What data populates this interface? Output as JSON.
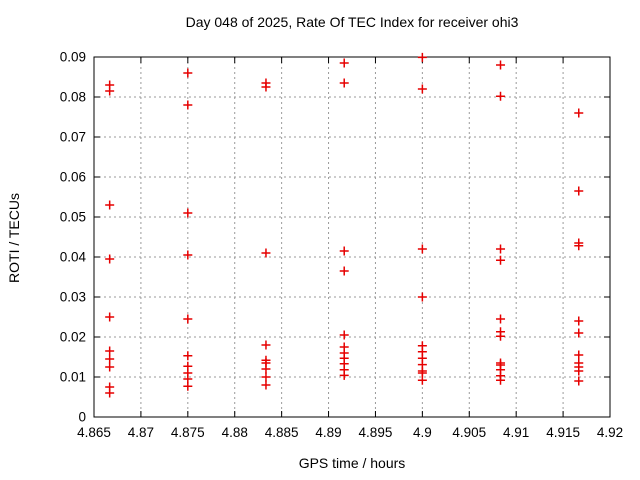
{
  "chart_data": {
    "type": "scatter",
    "title": "Day 048 of 2025, Rate Of TEC Index for receiver ohi3",
    "xlabel": "GPS time / hours",
    "ylabel": "ROTI / TECUs",
    "xlim": [
      4.865,
      4.92
    ],
    "ylim": [
      0,
      0.09
    ],
    "x_tick_labels": [
      "4.865",
      "4.87",
      "4.875",
      "4.88",
      "4.885",
      "4.89",
      "4.895",
      "4.9",
      "4.905",
      "4.91",
      "4.915",
      "4.92"
    ],
    "y_tick_labels": [
      "0",
      "0.01",
      "0.02",
      "0.03",
      "0.04",
      "0.05",
      "0.06",
      "0.07",
      "0.08",
      "0.09"
    ],
    "grid": true,
    "grid_color": "#9a9a9a",
    "legend": "none",
    "marker": {
      "shape": "plus",
      "color": "#e60000",
      "size": 9
    },
    "series": [
      {
        "name": "ROTI",
        "points": [
          [
            4.86667,
            0.083
          ],
          [
            4.86667,
            0.0815
          ],
          [
            4.86667,
            0.053
          ],
          [
            4.86667,
            0.0395
          ],
          [
            4.86667,
            0.025
          ],
          [
            4.86667,
            0.0165
          ],
          [
            4.86667,
            0.0145
          ],
          [
            4.86667,
            0.0125
          ],
          [
            4.86667,
            0.0075
          ],
          [
            4.86667,
            0.006
          ],
          [
            4.875,
            0.086
          ],
          [
            4.875,
            0.078
          ],
          [
            4.875,
            0.051
          ],
          [
            4.875,
            0.0405
          ],
          [
            4.875,
            0.0245
          ],
          [
            4.875,
            0.0153
          ],
          [
            4.875,
            0.0127
          ],
          [
            4.875,
            0.011
          ],
          [
            4.875,
            0.0095
          ],
          [
            4.875,
            0.0077
          ],
          [
            4.88333,
            0.0835
          ],
          [
            4.88333,
            0.0825
          ],
          [
            4.88333,
            0.041
          ],
          [
            4.88333,
            0.018
          ],
          [
            4.88333,
            0.0142
          ],
          [
            4.88333,
            0.0135
          ],
          [
            4.88333,
            0.012
          ],
          [
            4.88333,
            0.01
          ],
          [
            4.88333,
            0.008
          ],
          [
            4.89167,
            0.0885
          ],
          [
            4.89167,
            0.0835
          ],
          [
            4.89167,
            0.0415
          ],
          [
            4.89167,
            0.0365
          ],
          [
            4.89167,
            0.0205
          ],
          [
            4.89167,
            0.0175
          ],
          [
            4.89167,
            0.016
          ],
          [
            4.89167,
            0.0147
          ],
          [
            4.89167,
            0.0133
          ],
          [
            4.89167,
            0.0118
          ],
          [
            4.89167,
            0.0104
          ],
          [
            4.9,
            0.0899
          ],
          [
            4.9,
            0.082
          ],
          [
            4.9,
            0.042
          ],
          [
            4.9,
            0.03
          ],
          [
            4.9,
            0.0178
          ],
          [
            4.9,
            0.0163
          ],
          [
            4.9,
            0.0147
          ],
          [
            4.9,
            0.0131
          ],
          [
            4.9,
            0.0115
          ],
          [
            4.9,
            0.011
          ],
          [
            4.9,
            0.0092
          ],
          [
            4.90833,
            0.088
          ],
          [
            4.90833,
            0.0802
          ],
          [
            4.90833,
            0.042
          ],
          [
            4.90833,
            0.0392
          ],
          [
            4.90833,
            0.0245
          ],
          [
            4.90833,
            0.0213
          ],
          [
            4.90833,
            0.0202
          ],
          [
            4.90833,
            0.0135
          ],
          [
            4.90833,
            0.013
          ],
          [
            4.90833,
            0.0118
          ],
          [
            4.90833,
            0.0103
          ],
          [
            4.90833,
            0.0092
          ],
          [
            4.91667,
            0.076
          ],
          [
            4.91667,
            0.0565
          ],
          [
            4.91667,
            0.0435
          ],
          [
            4.91667,
            0.0428
          ],
          [
            4.91667,
            0.024
          ],
          [
            4.91667,
            0.021
          ],
          [
            4.91667,
            0.0155
          ],
          [
            4.91667,
            0.0135
          ],
          [
            4.91667,
            0.0125
          ],
          [
            4.91667,
            0.0115
          ],
          [
            4.91667,
            0.009
          ]
        ]
      }
    ]
  }
}
